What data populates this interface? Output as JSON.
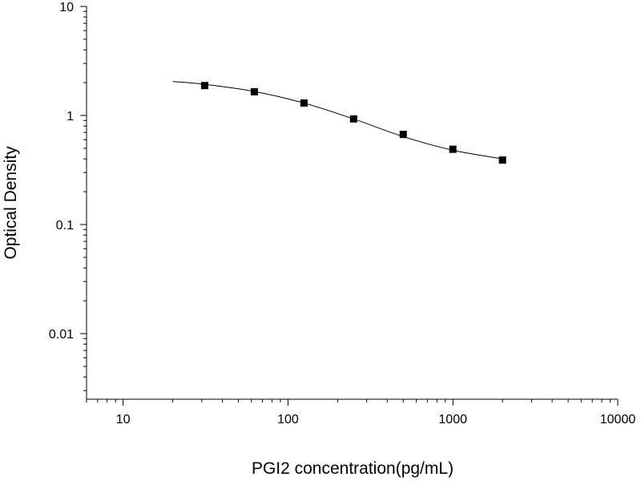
{
  "chart_data": {
    "type": "scatter",
    "xlabel": "PGI2 concentration(pg/mL)",
    "ylabel": "Optical Density",
    "x_scale": "log",
    "y_scale": "log",
    "xlim": [
      6,
      10000
    ],
    "ylim": [
      0.0025,
      10
    ],
    "x_ticks": [
      {
        "value": 10,
        "label": "10"
      },
      {
        "value": 100,
        "label": "100"
      },
      {
        "value": 1000,
        "label": "1000"
      },
      {
        "value": 10000,
        "label": "10000"
      }
    ],
    "y_ticks": [
      {
        "value": 0.01,
        "label": "0.01"
      },
      {
        "value": 0.1,
        "label": "0.1"
      },
      {
        "value": 1,
        "label": "1"
      },
      {
        "value": 10,
        "label": "10"
      }
    ],
    "grid": false,
    "series": [
      {
        "marker": "square",
        "color": "#000000",
        "points": [
          {
            "x": 31.25,
            "y": 1.88
          },
          {
            "x": 62.5,
            "y": 1.65
          },
          {
            "x": 125,
            "y": 1.3
          },
          {
            "x": 250,
            "y": 0.93
          },
          {
            "x": 500,
            "y": 0.67
          },
          {
            "x": 1000,
            "y": 0.49
          },
          {
            "x": 2000,
            "y": 0.39
          }
        ]
      }
    ],
    "fit_curve": {
      "color": "#000000",
      "points": [
        {
          "x": 20,
          "y": 2.05
        },
        {
          "x": 31.25,
          "y": 1.93
        },
        {
          "x": 62.5,
          "y": 1.66
        },
        {
          "x": 125,
          "y": 1.3
        },
        {
          "x": 250,
          "y": 0.93
        },
        {
          "x": 500,
          "y": 0.64
        },
        {
          "x": 1000,
          "y": 0.48
        },
        {
          "x": 2000,
          "y": 0.4
        }
      ]
    }
  }
}
